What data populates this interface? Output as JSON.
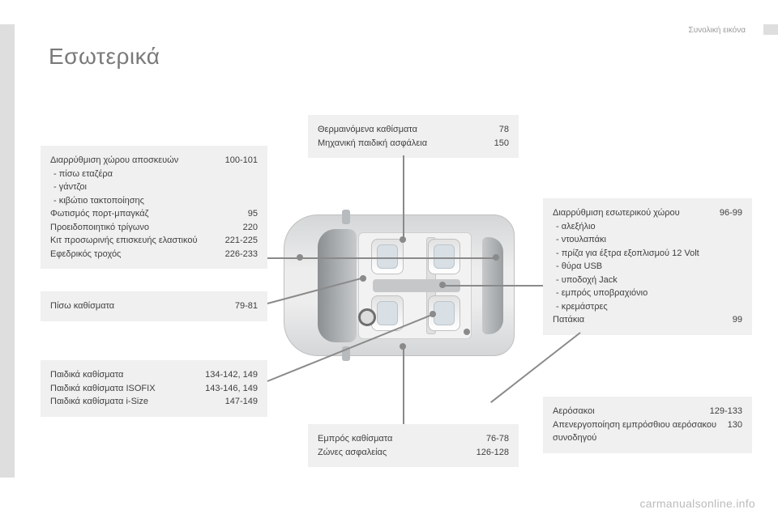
{
  "page": {
    "section_label": "Συνολική εικόνα",
    "title": "Εσωτερικά",
    "title_color": "#7a7a7a",
    "watermark": "carmanualsonline.info",
    "background": "#ffffff",
    "box_bg": "#f0f0f0",
    "text_color": "#404040",
    "line_color": "#8a8a8a"
  },
  "boxes": {
    "top_left": {
      "items": [
        {
          "label": "Διαρρύθμιση χώρου αποσκευών",
          "page": "100-101"
        },
        {
          "sub": "πίσω εταζέρα"
        },
        {
          "sub": "γάντζοι"
        },
        {
          "sub": "κιβώτιο τακτοποίησης"
        },
        {
          "label": "Φωτισμός πορτ-μπαγκάζ",
          "page": "95"
        },
        {
          "label": "Προειδοποιητικό τρίγωνο",
          "page": "220"
        },
        {
          "label": "Κιτ προσωρινής επισκευής ελαστικού",
          "page": "221-225"
        },
        {
          "label": "Εφεδρικός τροχός",
          "page": "226-233"
        }
      ]
    },
    "top_center": {
      "items": [
        {
          "label": "Θερμαινόμενα καθίσματα",
          "page": "78"
        },
        {
          "label": "Μηχανική παιδική ασφάλεια",
          "page": "150"
        }
      ]
    },
    "mid_left": {
      "items": [
        {
          "label": "Πίσω καθίσματα",
          "page": "79-81"
        }
      ]
    },
    "bot_left": {
      "items": [
        {
          "label": "Παιδικά καθίσματα",
          "page": "134-142, 149"
        },
        {
          "label": "Παιδικά καθίσματα ISOFIX",
          "page": "143-146, 149"
        },
        {
          "label": "Παιδικά καθίσματα i-Size",
          "page": "147-149"
        }
      ]
    },
    "bot_center": {
      "items": [
        {
          "label": "Εμπρός καθίσματα",
          "page": "76-78"
        },
        {
          "label": "Ζώνες ασφαλείας",
          "page": "126-128"
        }
      ]
    },
    "right_top": {
      "items": [
        {
          "label": "Διαρρύθμιση εσωτερικού χώρου",
          "page": "96-99"
        },
        {
          "sub": "αλεξήλιο"
        },
        {
          "sub": "ντουλαπάκι"
        },
        {
          "sub": "πρίζα για έξτρα εξοπλισμού 12 Volt"
        },
        {
          "sub": "θύρα USB"
        },
        {
          "sub": "υποδοχή Jack"
        },
        {
          "sub": "εμπρός υποβραχιόνιο"
        },
        {
          "sub": "κρεμάστρες"
        },
        {
          "label": "Πατάκια",
          "page": "99"
        }
      ]
    },
    "right_bot": {
      "items": [
        {
          "label": "Αερόσακοι",
          "page": "129-133"
        },
        {
          "label": "Απενεργοποίηση εμπρόσθιου αερόσακου συνοδηγού",
          "page": "130"
        }
      ]
    }
  }
}
